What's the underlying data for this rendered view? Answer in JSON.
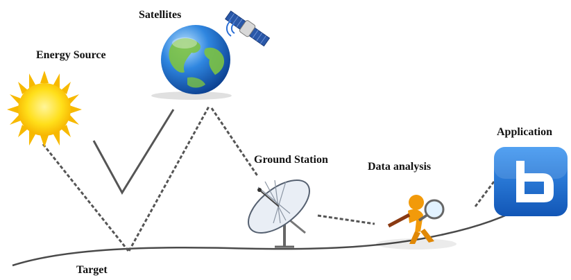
{
  "labels": {
    "energy_source": "Energy Source",
    "satellites": "Satellites",
    "ground_station": "Ground Station",
    "data_analysis": "Data analysis",
    "application": "Application",
    "target": "Target"
  },
  "icons": {
    "sun": "sun-icon",
    "globe": "earth-globe-icon",
    "satellite": "satellite-icon",
    "dish": "satellite-dish-icon",
    "analyst": "magnifier-figure-icon",
    "app": "application-b-icon"
  },
  "colors": {
    "sun": "#ffd400",
    "sun_rays": "#f6b800",
    "globe_ocean": "#1f6fd1",
    "globe_land": "#7cc242",
    "app_tile": "#1b6fd3",
    "figure": "#f29a0a",
    "line": "#555555"
  }
}
